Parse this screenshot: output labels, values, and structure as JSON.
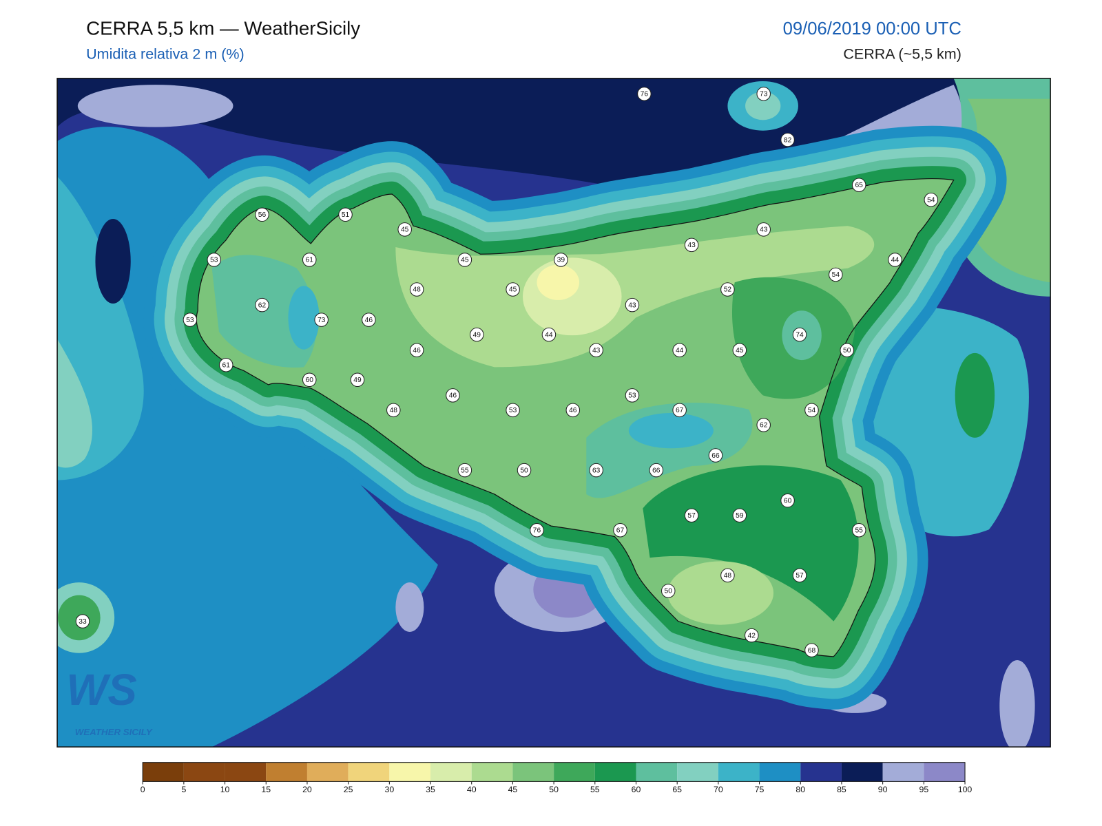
{
  "header": {
    "title": "CERRA 5,5 km — WeatherSicily",
    "subtitle": "Umidita relativa 2 m (%)",
    "valid_time": "09/06/2019 00:00 UTC",
    "model": "CERRA (~5,5 km)"
  },
  "map": {
    "station_values": [
      76,
      73,
      82,
      65,
      54,
      56,
      51,
      45,
      43,
      43,
      53,
      61,
      45,
      39,
      54,
      44,
      48,
      45,
      52,
      62,
      43,
      53,
      73,
      46,
      49,
      44,
      74,
      46,
      43,
      44,
      45,
      50,
      61,
      60,
      49,
      46,
      53,
      53,
      46,
      48,
      67,
      54,
      62,
      66,
      55,
      50,
      63,
      66,
      60,
      57,
      59,
      76,
      67,
      55,
      48,
      57,
      50,
      42,
      68,
      33
    ]
  },
  "colorbar": {
    "ticks": [
      0,
      5,
      10,
      15,
      20,
      25,
      30,
      35,
      40,
      45,
      50,
      55,
      60,
      65,
      70,
      75,
      80,
      85,
      90,
      95,
      100
    ],
    "colors": [
      "#7a3e0b",
      "#8b4712",
      "#8b4712",
      "#c07f30",
      "#e0ad5a",
      "#f0d47b",
      "#f7f6aa",
      "#d8edab",
      "#acdb90",
      "#7bc47b",
      "#3ea85a",
      "#1b9850",
      "#5ebf9e",
      "#82d0c0",
      "#3cb3c8",
      "#1e8fc4",
      "#26338f",
      "#0b1d57",
      "#a3acd8",
      "#8c88c8"
    ]
  },
  "logo": {
    "mark": "WS",
    "name": "WEATHER SICILY"
  }
}
